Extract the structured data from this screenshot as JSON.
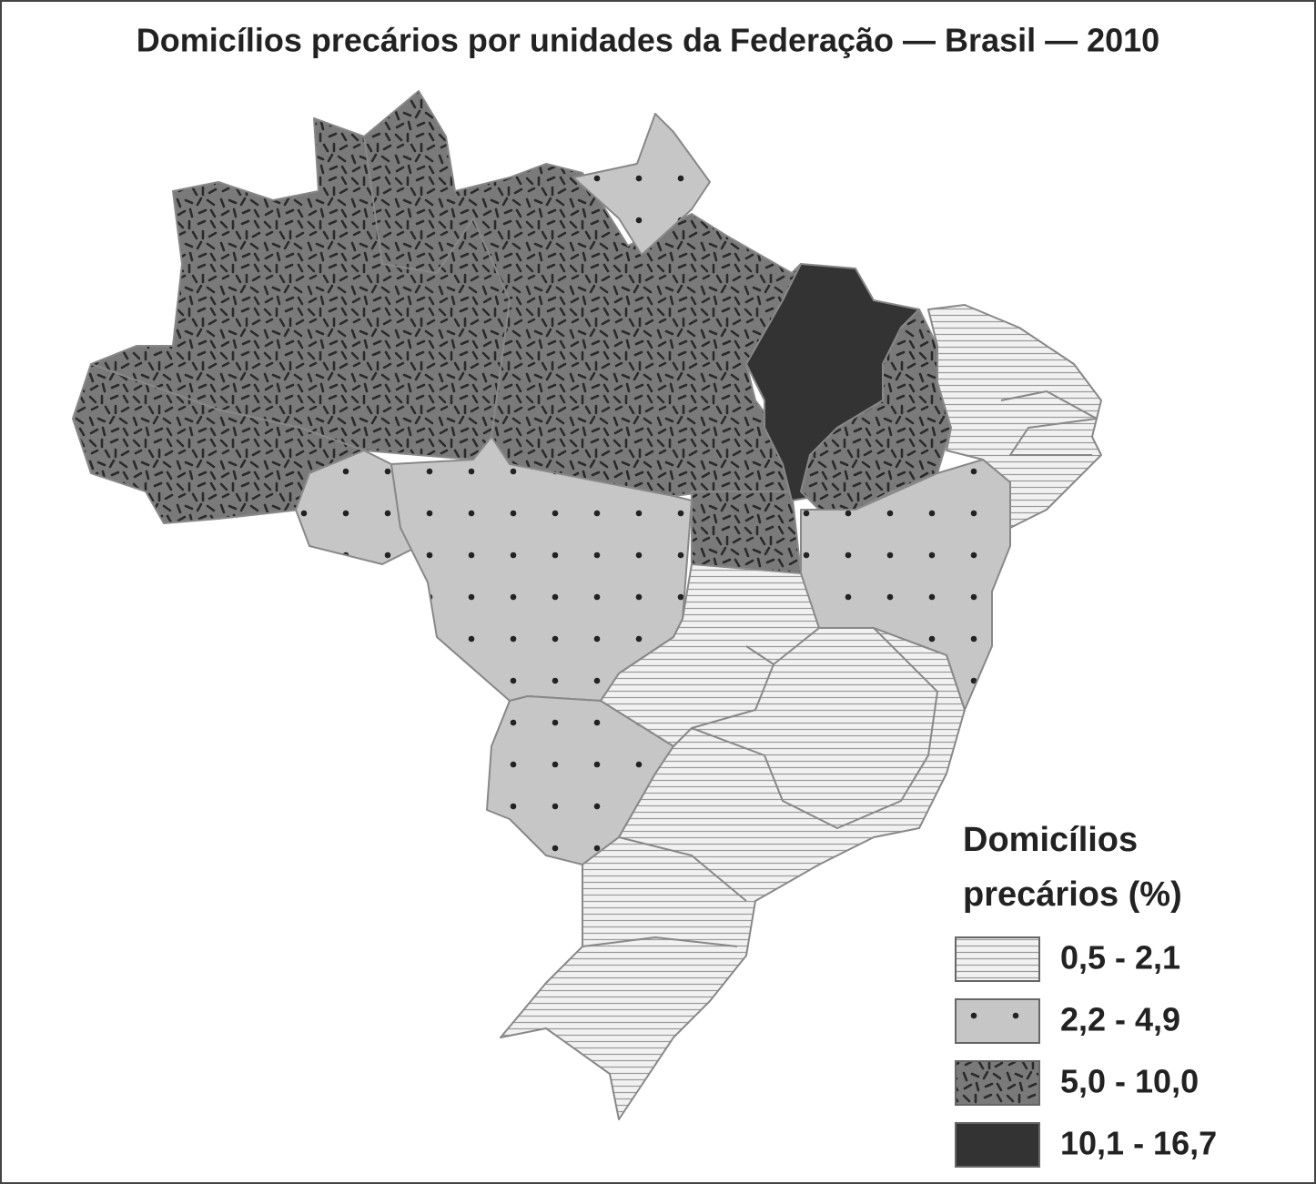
{
  "title": "Domicílios precários por unidades da Federação — Brasil — 2010",
  "legend": {
    "title_lines": [
      "Domicílios",
      "precários (%)"
    ],
    "items": [
      {
        "label": "0,5 - 2,1"
      },
      {
        "label": "2,2 - 4,9"
      },
      {
        "label": "5,0 - 10,0"
      },
      {
        "label": "10,1 - 16,7"
      }
    ]
  }
}
